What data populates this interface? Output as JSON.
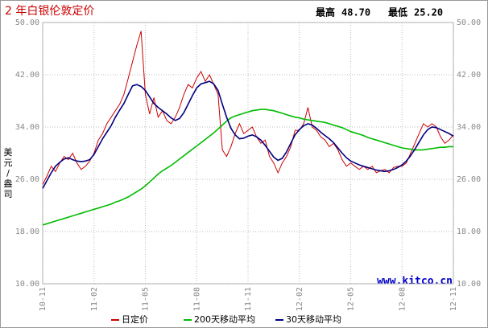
{
  "chart_data": {
    "type": "line",
    "title": "2 年白银伦敦定价",
    "stats": [
      {
        "label": "最高",
        "value": "48.70"
      },
      {
        "label": "最低",
        "value": "25.20"
      }
    ],
    "y_label": "美元/盎司",
    "watermark": "www.kitco.cn",
    "categories": [
      "10-11",
      null,
      null,
      null,
      null,
      null,
      null,
      null,
      null,
      null,
      null,
      null,
      "11-02",
      null,
      null,
      null,
      null,
      null,
      null,
      null,
      null,
      null,
      null,
      null,
      "11-05",
      null,
      null,
      null,
      null,
      null,
      null,
      null,
      null,
      null,
      null,
      null,
      "11-08",
      null,
      null,
      null,
      null,
      null,
      null,
      null,
      null,
      null,
      null,
      null,
      "11-11",
      null,
      null,
      null,
      null,
      null,
      null,
      null,
      null,
      null,
      null,
      null,
      "12-02",
      null,
      null,
      null,
      null,
      null,
      null,
      null,
      null,
      null,
      null,
      null,
      "12-05",
      null,
      null,
      null,
      null,
      null,
      null,
      null,
      null,
      null,
      null,
      null,
      "12-08",
      null,
      null,
      null,
      null,
      null,
      null,
      null,
      null,
      null,
      null,
      null,
      "12-11"
    ],
    "series": [
      {
        "name": "日定价",
        "color": "#cc0000",
        "values": [
          25.2,
          26.5,
          28.0,
          27.2,
          28.5,
          29.5,
          29.0,
          30.0,
          28.5,
          27.5,
          28.0,
          28.8,
          30.0,
          32.0,
          33.0,
          34.5,
          35.5,
          36.5,
          37.5,
          39.0,
          41.5,
          44.0,
          46.5,
          48.7,
          39.0,
          36.0,
          38.5,
          35.5,
          36.5,
          35.0,
          34.5,
          35.5,
          37.0,
          39.0,
          40.5,
          40.0,
          41.5,
          42.5,
          41.0,
          42.0,
          40.5,
          39.0,
          30.5,
          29.5,
          31.0,
          33.0,
          34.5,
          33.0,
          33.5,
          34.0,
          32.5,
          31.5,
          32.0,
          29.5,
          28.5,
          27.0,
          28.5,
          29.5,
          31.0,
          33.5,
          33.5,
          34.5,
          37.0,
          34.0,
          33.5,
          32.5,
          32.0,
          31.0,
          31.5,
          30.5,
          29.0,
          28.0,
          28.5,
          28.0,
          27.5,
          28.0,
          27.5,
          28.0,
          27.0,
          27.3,
          27.5,
          27.0,
          27.8,
          28.0,
          28.0,
          28.5,
          30.0,
          31.5,
          33.0,
          34.5,
          34.0,
          34.5,
          34.0,
          32.5,
          31.5,
          32.0,
          32.8
        ]
      },
      {
        "name": "200天移动平均",
        "color": "#00bb00",
        "values": [
          19.0,
          19.2,
          19.4,
          19.6,
          19.8,
          20.0,
          20.2,
          20.4,
          20.6,
          20.8,
          21.0,
          21.2,
          21.4,
          21.6,
          21.8,
          22.0,
          22.2,
          22.5,
          22.7,
          23.0,
          23.3,
          23.7,
          24.1,
          24.5,
          25.0,
          25.6,
          26.2,
          26.8,
          27.3,
          27.7,
          28.1,
          28.6,
          29.1,
          29.6,
          30.1,
          30.6,
          31.1,
          31.6,
          32.1,
          32.6,
          33.1,
          33.7,
          34.3,
          34.9,
          35.4,
          35.7,
          35.9,
          36.1,
          36.3,
          36.5,
          36.6,
          36.7,
          36.7,
          36.6,
          36.5,
          36.3,
          36.1,
          35.9,
          35.7,
          35.5,
          35.4,
          35.2,
          35.1,
          35.0,
          34.9,
          34.8,
          34.7,
          34.5,
          34.3,
          34.1,
          33.9,
          33.6,
          33.3,
          33.1,
          32.9,
          32.7,
          32.4,
          32.2,
          32.0,
          31.8,
          31.6,
          31.4,
          31.2,
          31.0,
          30.8,
          30.7,
          30.6,
          30.5,
          30.5,
          30.5,
          30.6,
          30.7,
          30.8,
          30.9,
          30.9,
          31.0,
          31.0
        ]
      },
      {
        "name": "30天移动平均",
        "color": "#000080",
        "values": [
          24.6,
          25.8,
          27.0,
          28.0,
          28.6,
          29.1,
          29.3,
          29.0,
          28.8,
          28.7,
          28.8,
          29.0,
          29.8,
          31.0,
          32.2,
          33.2,
          34.2,
          35.5,
          36.6,
          37.6,
          39.0,
          40.3,
          40.5,
          40.2,
          39.6,
          38.6,
          37.6,
          37.0,
          36.5,
          36.0,
          35.4,
          35.0,
          35.3,
          36.2,
          37.5,
          38.8,
          40.0,
          40.6,
          40.8,
          41.0,
          40.6,
          39.6,
          37.5,
          35.5,
          33.8,
          32.8,
          32.2,
          32.3,
          32.6,
          32.8,
          32.5,
          32.0,
          31.2,
          30.3,
          29.4,
          28.9,
          29.2,
          30.2,
          31.5,
          32.8,
          33.6,
          34.2,
          34.5,
          34.3,
          33.8,
          33.2,
          32.7,
          32.2,
          31.6,
          30.8,
          30.0,
          29.3,
          28.8,
          28.5,
          28.2,
          28.0,
          27.8,
          27.6,
          27.4,
          27.3,
          27.2,
          27.3,
          27.5,
          27.8,
          28.2,
          28.8,
          29.6,
          30.6,
          31.7,
          32.8,
          33.6,
          34.0,
          33.9,
          33.6,
          33.3,
          33.0,
          32.6
        ]
      }
    ],
    "ylim": [
      10,
      50
    ],
    "yticks": [
      {
        "value": 10,
        "label": "10.00"
      },
      {
        "value": 18,
        "label": "18.00"
      },
      {
        "value": 26,
        "label": "26.00"
      },
      {
        "value": 34,
        "label": "34.00"
      },
      {
        "value": 42,
        "label": "42.00"
      },
      {
        "value": 50,
        "label": "50.00"
      }
    ],
    "grid": true
  }
}
